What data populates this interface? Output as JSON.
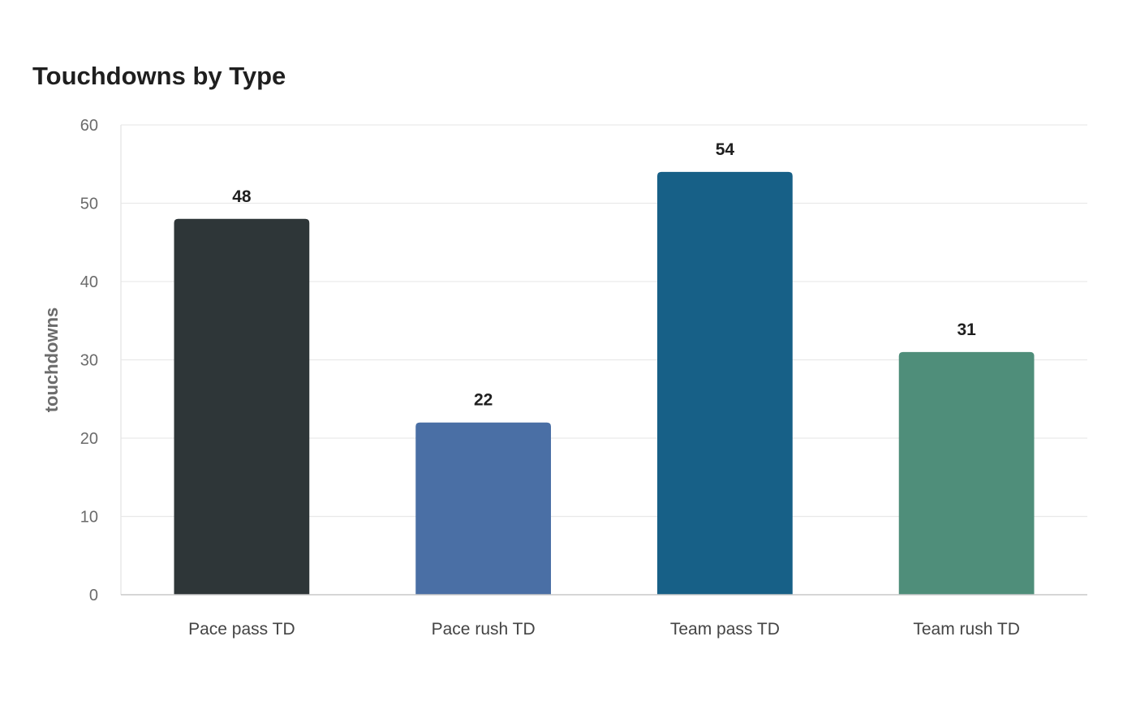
{
  "chart_data": {
    "type": "bar",
    "title": "Touchdowns by Type",
    "xlabel": "",
    "ylabel": "touchdowns",
    "categories": [
      "Pace pass TD",
      "Pace rush TD",
      "Team pass TD",
      "Team rush TD"
    ],
    "values": [
      48,
      22,
      54,
      31
    ],
    "colors": [
      "#2e3638",
      "#4a6fa5",
      "#176087",
      "#4f8e7a"
    ],
    "ylim": [
      0,
      60
    ],
    "yticks": [
      0,
      10,
      20,
      30,
      40,
      50,
      60
    ],
    "grid": true,
    "legend": "none",
    "data_labels": true
  }
}
